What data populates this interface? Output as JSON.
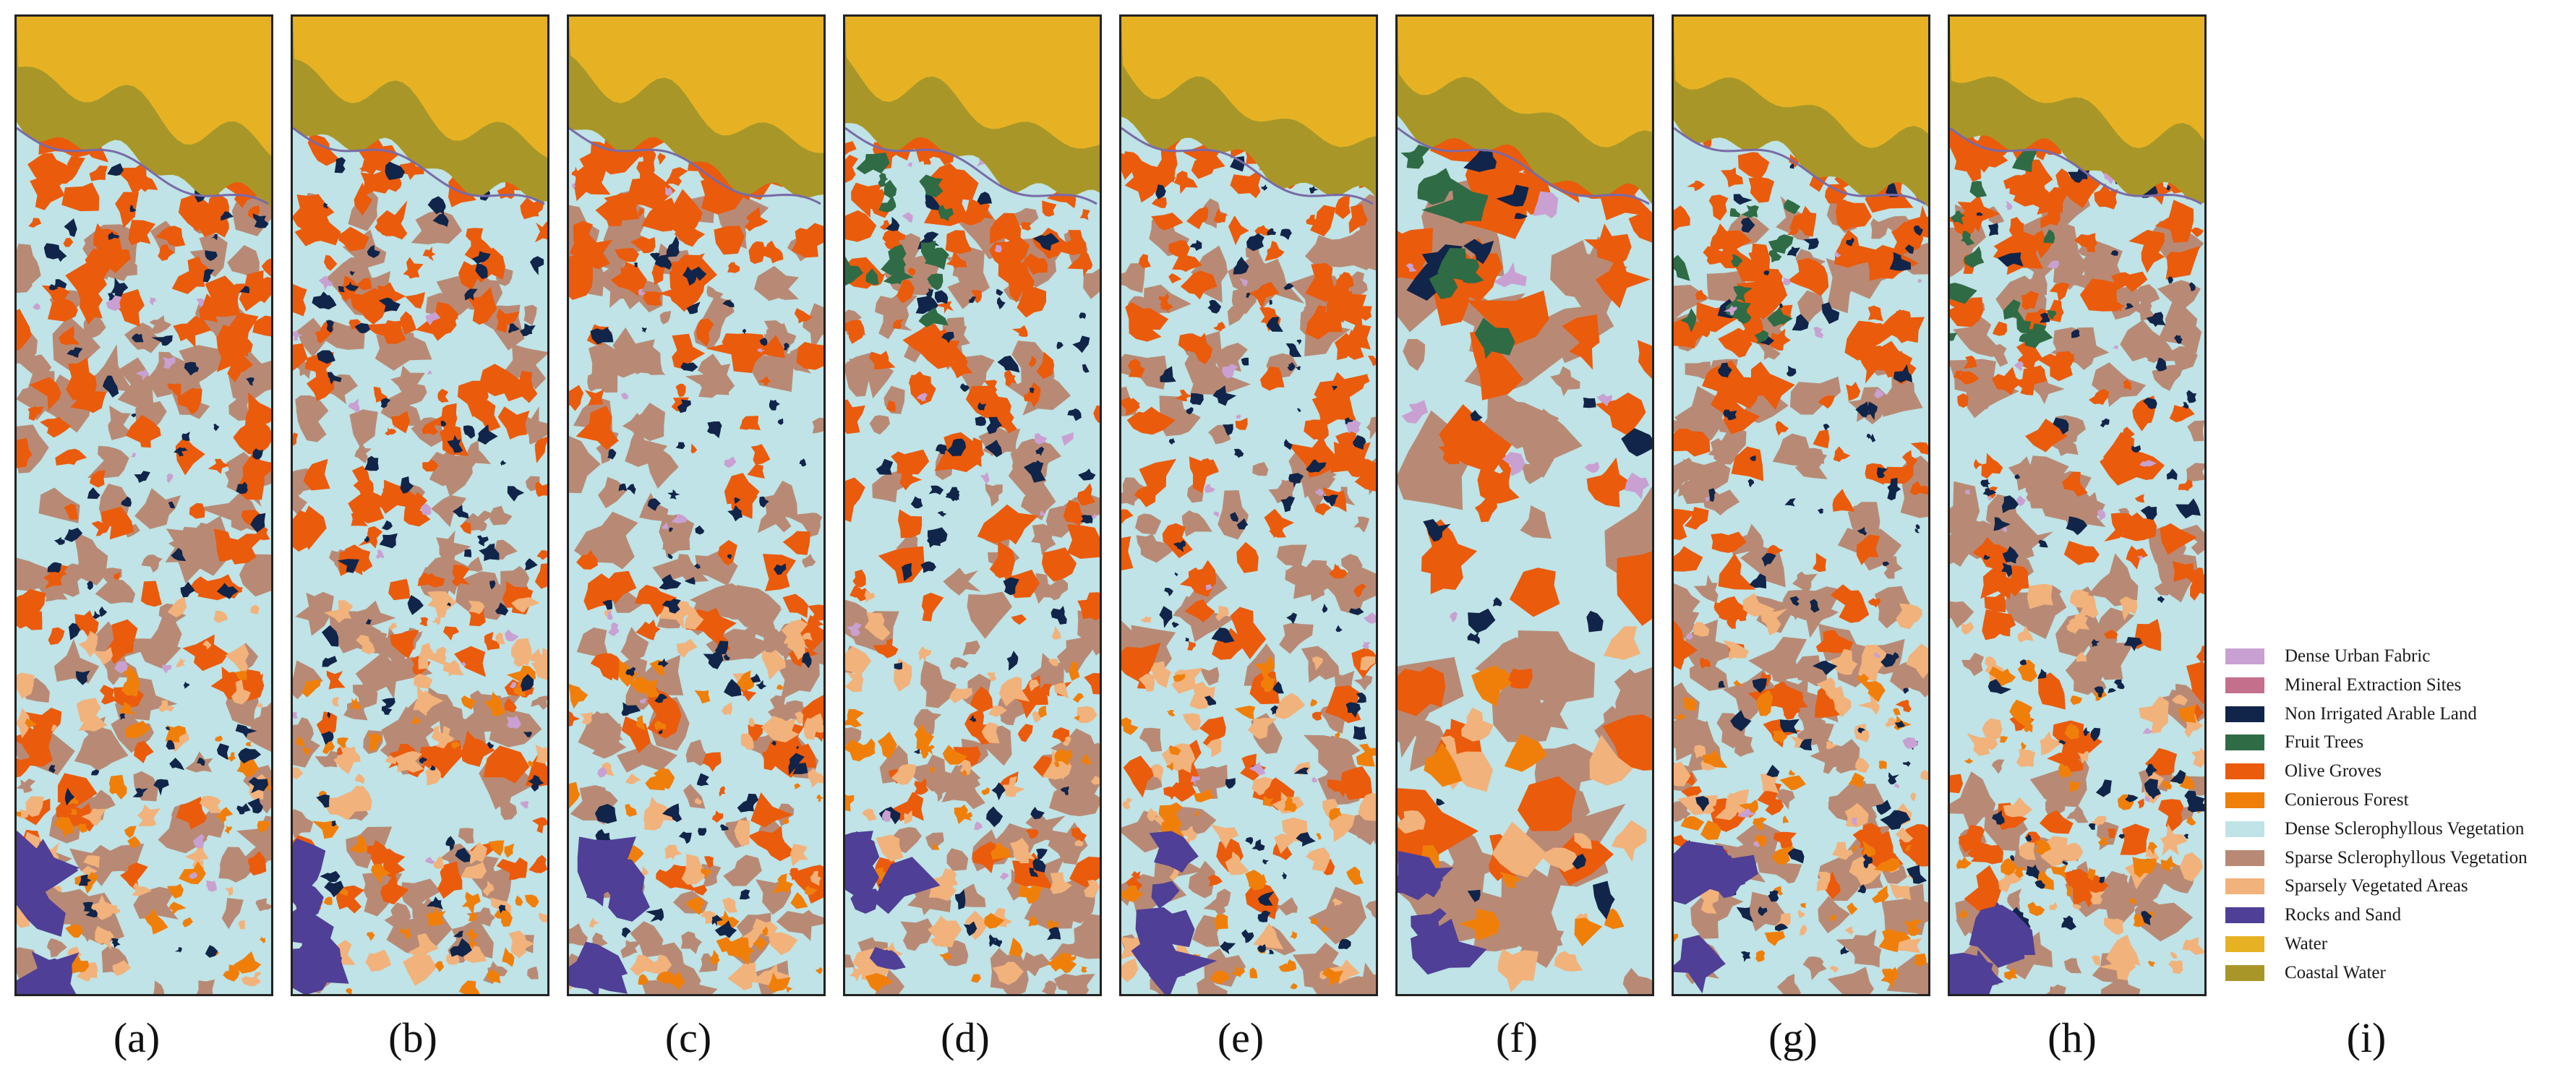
{
  "legend": {
    "items": [
      {
        "label": "Dense Urban Fabric",
        "color": "#c9a0d2"
      },
      {
        "label": "Mineral Extraction Sites",
        "color": "#c46f8c"
      },
      {
        "label": "Non Irrigated Arable Land",
        "color": "#112449"
      },
      {
        "label": "Fruit Trees",
        "color": "#2f6b45"
      },
      {
        "label": "Olive Groves",
        "color": "#ea5b0c"
      },
      {
        "label": "Conierous Forest",
        "color": "#f07f0a"
      },
      {
        "label": "Dense Sclerophyllous Vegetation",
        "color": "#bfe3e6"
      },
      {
        "label": "Sparse Sclerophyllous Vegetation",
        "color": "#b88a75"
      },
      {
        "label": "Sparsely Vegetated Areas",
        "color": "#f2b27b"
      },
      {
        "label": "Rocks and Sand",
        "color": "#4f3f96"
      },
      {
        "label": "Water",
        "color": "#e6b224"
      },
      {
        "label": "Coastal Water",
        "color": "#a89728"
      }
    ]
  },
  "panels": [
    {
      "caption": "(a)",
      "variant": "a"
    },
    {
      "caption": "(b)",
      "variant": "b"
    },
    {
      "caption": "(c)",
      "variant": "c"
    },
    {
      "caption": "(d)",
      "variant": "d"
    },
    {
      "caption": "(e)",
      "variant": "e"
    },
    {
      "caption": "(f)",
      "variant": "f"
    },
    {
      "caption": "(g)",
      "variant": "g"
    },
    {
      "caption": "(h)",
      "variant": "h"
    }
  ],
  "legend_caption": "(i)"
}
